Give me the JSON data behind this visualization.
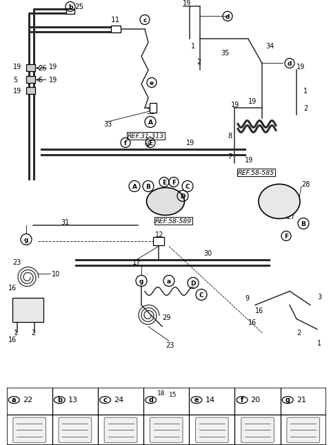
{
  "bg_color": "#ffffff",
  "line_color": "#2a2a2a",
  "legend_items": [
    {
      "symbol": "a",
      "number": "22"
    },
    {
      "symbol": "b",
      "number": "13"
    },
    {
      "symbol": "c",
      "number": "24"
    },
    {
      "symbol": "d",
      "number": ""
    },
    {
      "symbol": "e",
      "number": "14"
    },
    {
      "symbol": "f",
      "number": "20"
    },
    {
      "symbol": "g",
      "number": "21"
    }
  ],
  "legend_d_sub": [
    "18",
    "15"
  ],
  "figsize": [
    4.8,
    6.49
  ],
  "dpi": 100
}
